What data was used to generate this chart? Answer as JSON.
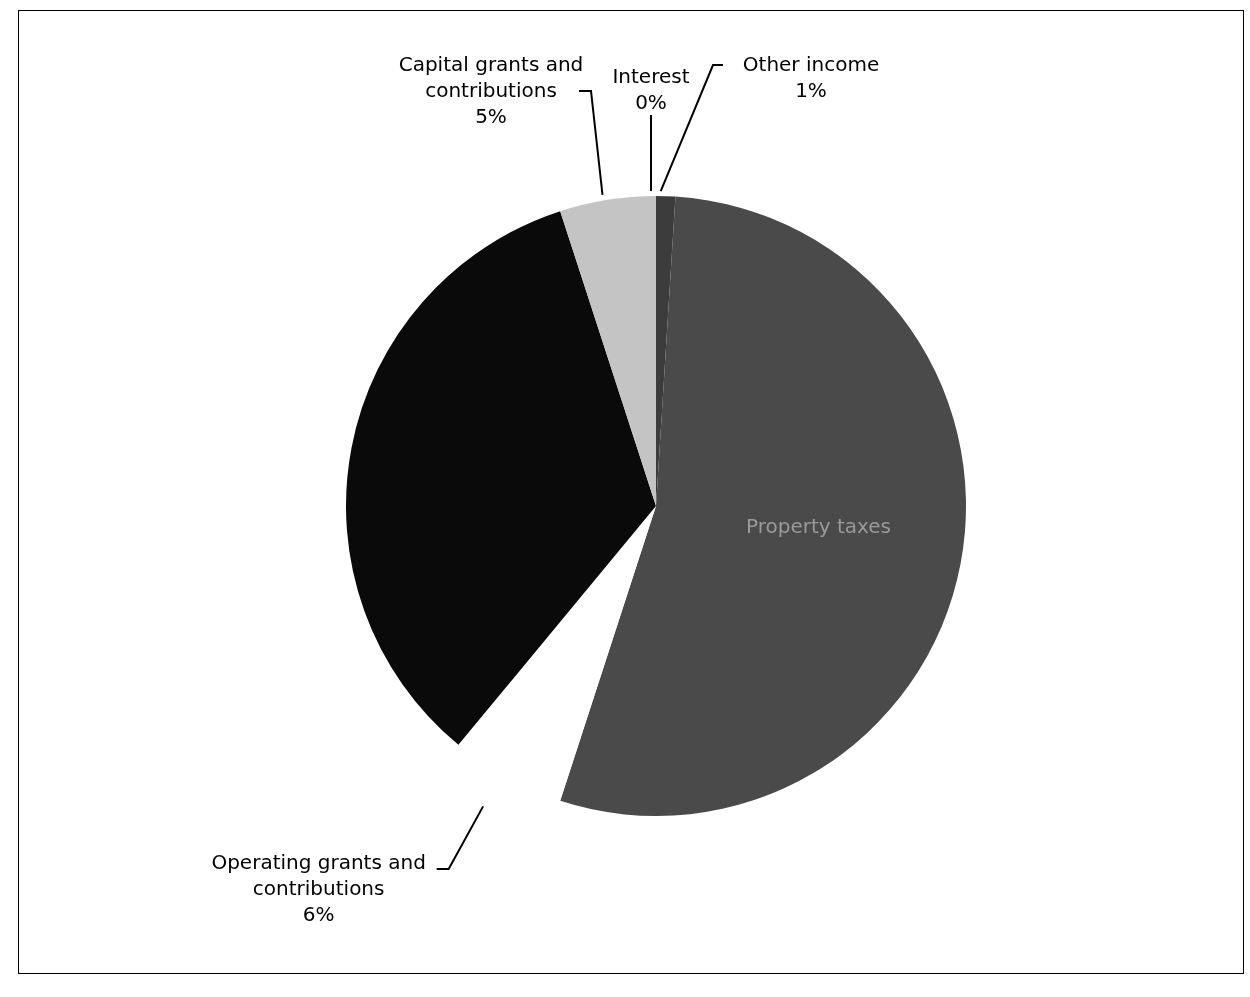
{
  "chart_data": {
    "type": "pie",
    "categories": [
      "Other income",
      "Property taxes",
      "Operating grants and contributions",
      null,
      "Capital grants and contributions",
      "Interest"
    ],
    "values": [
      1,
      54,
      6,
      34,
      5,
      0
    ],
    "colors": [
      "#3c3c3c",
      "#4a4a4a",
      "#ffffff",
      "#0a0a0a",
      "#c4c4c4",
      "#7a7a7a"
    ],
    "value_labels": [
      "1%",
      null,
      "6%",
      null,
      "5%",
      "0%"
    ]
  }
}
